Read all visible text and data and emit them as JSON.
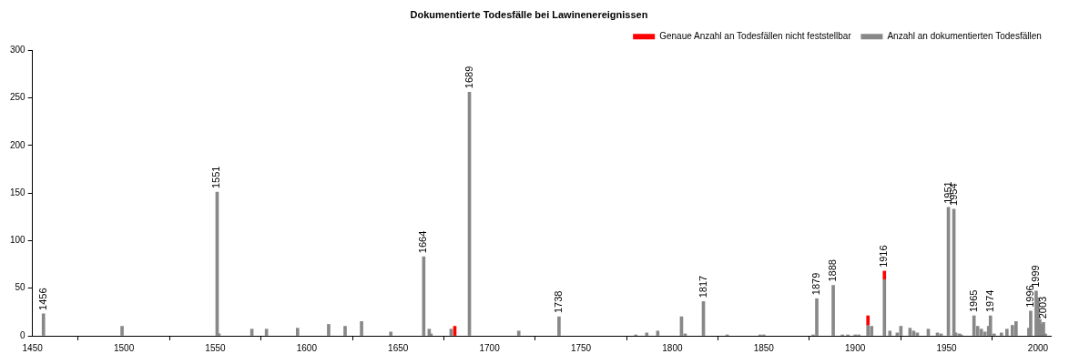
{
  "chart_data": {
    "type": "bar",
    "title": "Dokumentierte Todesfälle bei Lawinenereignissen",
    "stacked": true,
    "legend": "top right",
    "grid": false,
    "xlim": [
      1450,
      2007
    ],
    "xticks": [
      1450,
      1500,
      1550,
      1600,
      1650,
      1700,
      1750,
      1800,
      1850,
      1900,
      1950,
      2000
    ],
    "ylim": [
      0,
      300
    ],
    "yticks": [
      0,
      50,
      100,
      150,
      200,
      250,
      300
    ],
    "x": [
      1456,
      1499,
      1551,
      1552,
      1570,
      1578,
      1595,
      1612,
      1621,
      1630,
      1646,
      1664,
      1667,
      1668,
      1679,
      1681,
      1689,
      1716,
      1738,
      1780,
      1786,
      1792,
      1805,
      1807,
      1817,
      1830,
      1848,
      1850,
      1877,
      1879,
      1888,
      1893,
      1896,
      1900,
      1902,
      1907,
      1909,
      1916,
      1919,
      1923,
      1925,
      1930,
      1932,
      1934,
      1940,
      1945,
      1947,
      1951,
      1954,
      1955,
      1957,
      1958,
      1965,
      1967,
      1969,
      1971,
      1973,
      1974,
      1976,
      1980,
      1983,
      1986,
      1988,
      1995,
      1996,
      1999,
      2000,
      2001,
      2002,
      2003,
      2004
    ],
    "series": [
      {
        "name": "Anzahl an dokumentierten Todesfällen",
        "color": "#888888",
        "values": [
          23,
          10,
          151,
          2,
          7,
          7,
          8,
          12,
          10,
          15,
          4,
          83,
          7,
          2,
          7,
          null,
          256,
          5,
          20,
          1,
          3,
          5,
          20,
          2,
          36,
          1,
          1,
          1,
          1,
          39,
          53,
          1,
          1,
          1,
          1,
          11,
          10,
          59,
          5,
          3,
          10,
          8,
          5,
          3,
          7,
          3,
          2,
          135,
          133,
          3,
          2,
          1,
          21,
          10,
          7,
          4,
          10,
          21,
          2,
          3,
          7,
          11,
          15,
          8,
          26,
          47,
          40,
          17,
          12,
          14,
          2
        ]
      },
      {
        "name": "Genaue Anzahl an Todesfällen nicht feststellbar",
        "color": "#ff0000",
        "values": [
          null,
          null,
          null,
          null,
          null,
          null,
          null,
          null,
          null,
          null,
          null,
          null,
          null,
          null,
          null,
          10,
          null,
          null,
          null,
          null,
          null,
          null,
          null,
          null,
          null,
          null,
          null,
          null,
          null,
          null,
          null,
          null,
          null,
          null,
          null,
          10,
          null,
          9,
          null,
          null,
          null,
          null,
          null,
          null,
          null,
          null,
          null,
          null,
          null,
          null,
          null,
          null,
          null,
          null,
          null,
          null,
          null,
          null,
          null,
          null,
          null,
          null,
          null,
          null,
          null,
          null,
          null,
          null,
          null,
          null,
          null
        ]
      }
    ],
    "annotations": [
      {
        "text": "1456",
        "x": 1456,
        "y": 23
      },
      {
        "text": "1551",
        "x": 1551,
        "y": 151
      },
      {
        "text": "1664",
        "x": 1664,
        "y": 83
      },
      {
        "text": "1689",
        "x": 1689,
        "y": 256
      },
      {
        "text": "1738",
        "x": 1738,
        "y": 20
      },
      {
        "text": "1817",
        "x": 1817,
        "y": 36
      },
      {
        "text": "1879",
        "x": 1879,
        "y": 39
      },
      {
        "text": "1888",
        "x": 1888,
        "y": 53
      },
      {
        "text": "1916",
        "x": 1916,
        "y": 68
      },
      {
        "text": "1951",
        "x": 1951,
        "y": 135
      },
      {
        "text": "1954",
        "x": 1954,
        "y": 133
      },
      {
        "text": "1965",
        "x": 1965,
        "y": 21
      },
      {
        "text": "1974",
        "x": 1974,
        "y": 21
      },
      {
        "text": "1996",
        "x": 1996,
        "y": 26
      },
      {
        "text": "1999",
        "x": 1999,
        "y": 47
      },
      {
        "text": "2003",
        "x": 2003,
        "y": 14
      }
    ]
  }
}
